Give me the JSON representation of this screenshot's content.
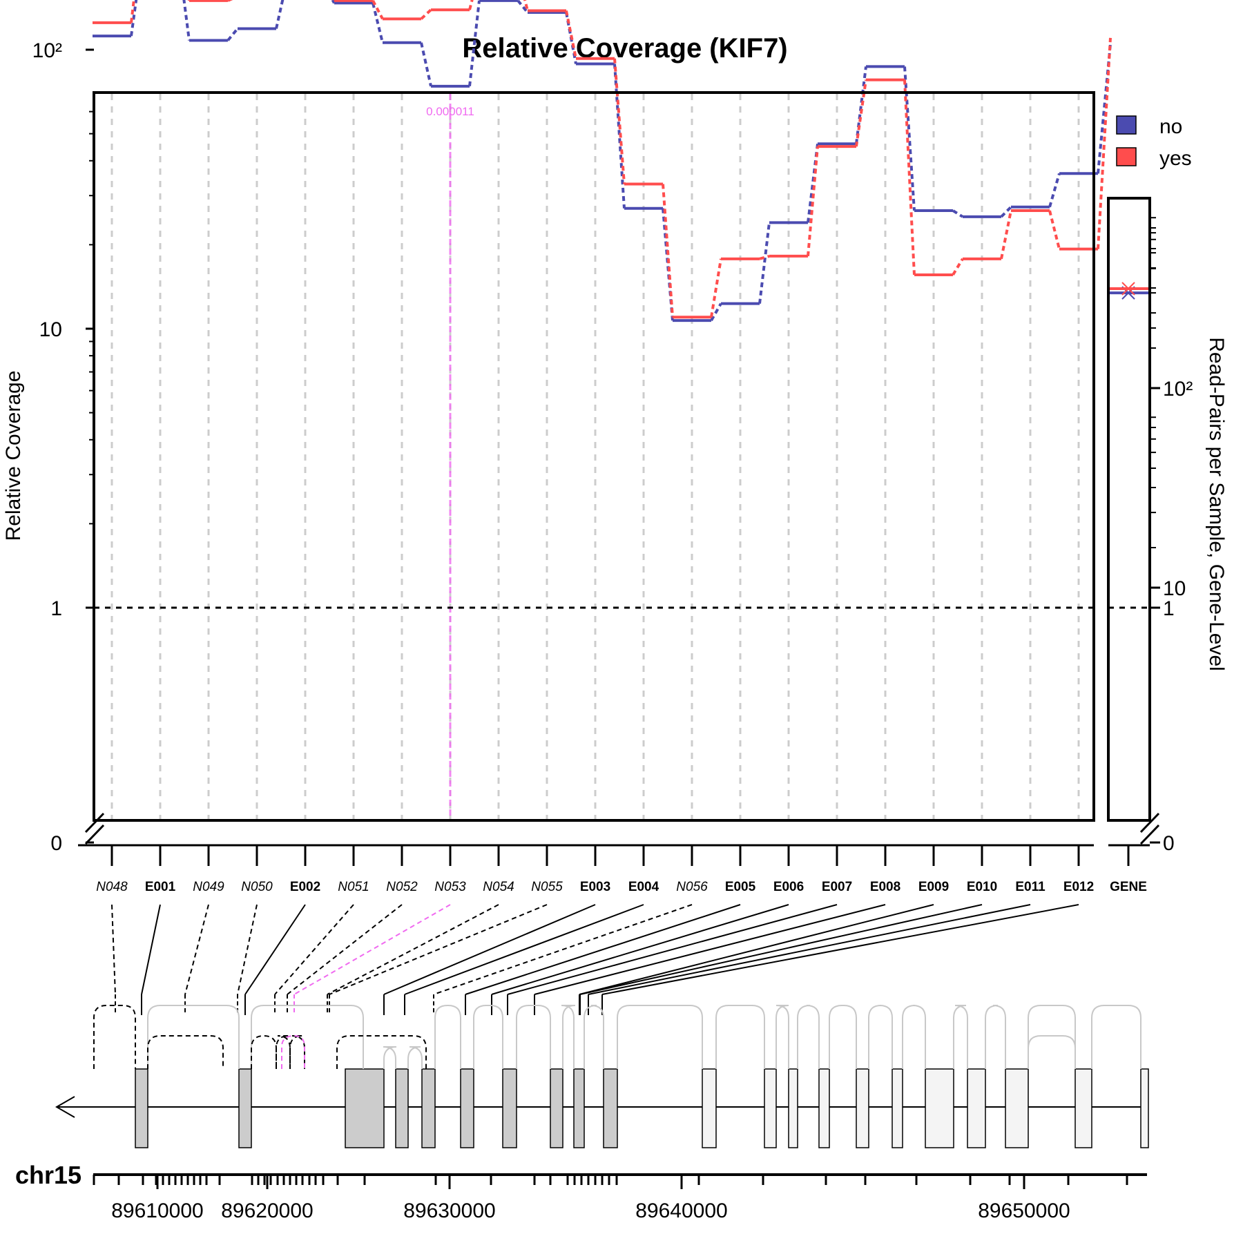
{
  "chart_data": {
    "type": "line",
    "title": "Relative Coverage (KIF7)",
    "ylabel": "Relative Coverage",
    "ylabel_right": "Read-Pairs per Sample, Gene-Level",
    "y_scale": "log with axis break (0 below 1)",
    "y_ticks_left": [
      "10²",
      "10",
      "1",
      "0"
    ],
    "y_ticks_right": [
      "10²",
      "10",
      "1",
      "0"
    ],
    "highlight": {
      "feature": "N053",
      "pvalue": "0.000011",
      "color": "#f06af0"
    },
    "features": [
      {
        "id": "N048",
        "type": "intron"
      },
      {
        "id": "E001",
        "type": "exon"
      },
      {
        "id": "N049",
        "type": "intron"
      },
      {
        "id": "N050",
        "type": "intron"
      },
      {
        "id": "E002",
        "type": "exon"
      },
      {
        "id": "N051",
        "type": "intron"
      },
      {
        "id": "N052",
        "type": "intron"
      },
      {
        "id": "N053",
        "type": "intron"
      },
      {
        "id": "N054",
        "type": "intron"
      },
      {
        "id": "N055",
        "type": "intron"
      },
      {
        "id": "E003",
        "type": "exon"
      },
      {
        "id": "E004",
        "type": "exon"
      },
      {
        "id": "N056",
        "type": "intron"
      },
      {
        "id": "E005",
        "type": "exon"
      },
      {
        "id": "E006",
        "type": "exon"
      },
      {
        "id": "E007",
        "type": "exon"
      },
      {
        "id": "E008",
        "type": "exon"
      },
      {
        "id": "E009",
        "type": "exon"
      },
      {
        "id": "E010",
        "type": "exon"
      },
      {
        "id": "E011",
        "type": "exon"
      },
      {
        "id": "E012",
        "type": "exon"
      }
    ],
    "series": [
      {
        "name": "no",
        "color": "#4b4bb0",
        "values": [
          112,
          200,
          108,
          119,
          170,
          147,
          106,
          74,
          150,
          136,
          89,
          27,
          10.7,
          12.3,
          24,
          46,
          87,
          26.5,
          25.2,
          27.3,
          36
        ]
      },
      {
        "name": "yes",
        "color": "#ff4d4d",
        "values": [
          125,
          245,
          150,
          155,
          190,
          150,
          129,
          139,
          190,
          138,
          93,
          33,
          11,
          17.8,
          18.2,
          45,
          78,
          15.6,
          17.8,
          26.5,
          19.3
        ]
      }
    ],
    "gene_level": {
      "label": "GENE",
      "values": [
        {
          "name": "no",
          "value": 300,
          "color": "#4b4bb0"
        },
        {
          "name": "yes",
          "value": 315,
          "color": "#ff4d4d"
        }
      ]
    },
    "legend": {
      "placement": "top-right",
      "entries": [
        {
          "label": "no",
          "color": "#4b4bb0"
        },
        {
          "label": "yes",
          "color": "#ff4d4d"
        }
      ]
    },
    "genome": {
      "chromosome": "chr15",
      "strand": "-",
      "xlim": [
        89606000,
        89656000
      ],
      "tick_labels": [
        "89610000",
        "89620000",
        "89630000",
        "89640000",
        "89650000"
      ]
    }
  }
}
